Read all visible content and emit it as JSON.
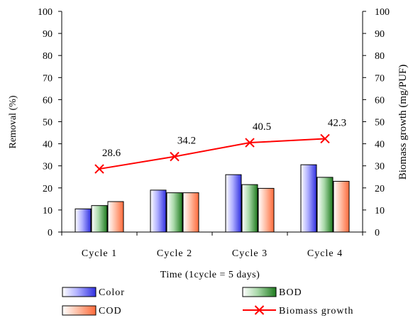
{
  "chart_data": {
    "type": "bar",
    "categories": [
      "Cycle 1",
      "Cycle 2",
      "Cycle 3",
      "Cycle 4"
    ],
    "series": [
      {
        "name": "Color",
        "values": [
          10.5,
          19,
          26,
          30.5
        ],
        "axis": "left"
      },
      {
        "name": "BOD",
        "values": [
          12,
          17.8,
          21.5,
          24.8
        ],
        "axis": "left"
      },
      {
        "name": "COD",
        "values": [
          13.8,
          17.8,
          19.8,
          23
        ],
        "axis": "left"
      }
    ],
    "line_series": {
      "name": "Biomass growth",
      "values": [
        28.6,
        34.2,
        40.5,
        42.3
      ],
      "labels": [
        "28.6",
        "34.2",
        "40.5",
        "42.3"
      ],
      "axis": "right",
      "marker": "x"
    },
    "xlabel": "Time (1cycle = 5 days)",
    "ylabel": "Removal (%)",
    "y2label": "Biomass growth (mg/PUF)",
    "ylim": [
      0,
      100
    ],
    "y2lim": [
      0,
      100
    ],
    "yticks": [
      "0",
      "10",
      "20",
      "30",
      "40",
      "50",
      "60",
      "70",
      "80",
      "90",
      "100"
    ],
    "y2ticks": [
      "0",
      "10",
      "20",
      "30",
      "40",
      "50",
      "60",
      "70",
      "80",
      "90",
      "100"
    ],
    "grid": false,
    "legend_position": "bottom",
    "colors": {
      "Color": "#7b7bff",
      "BOD": "#6fb56f",
      "COD": "#ff9a78",
      "Biomass growth": "#ff0000"
    }
  }
}
